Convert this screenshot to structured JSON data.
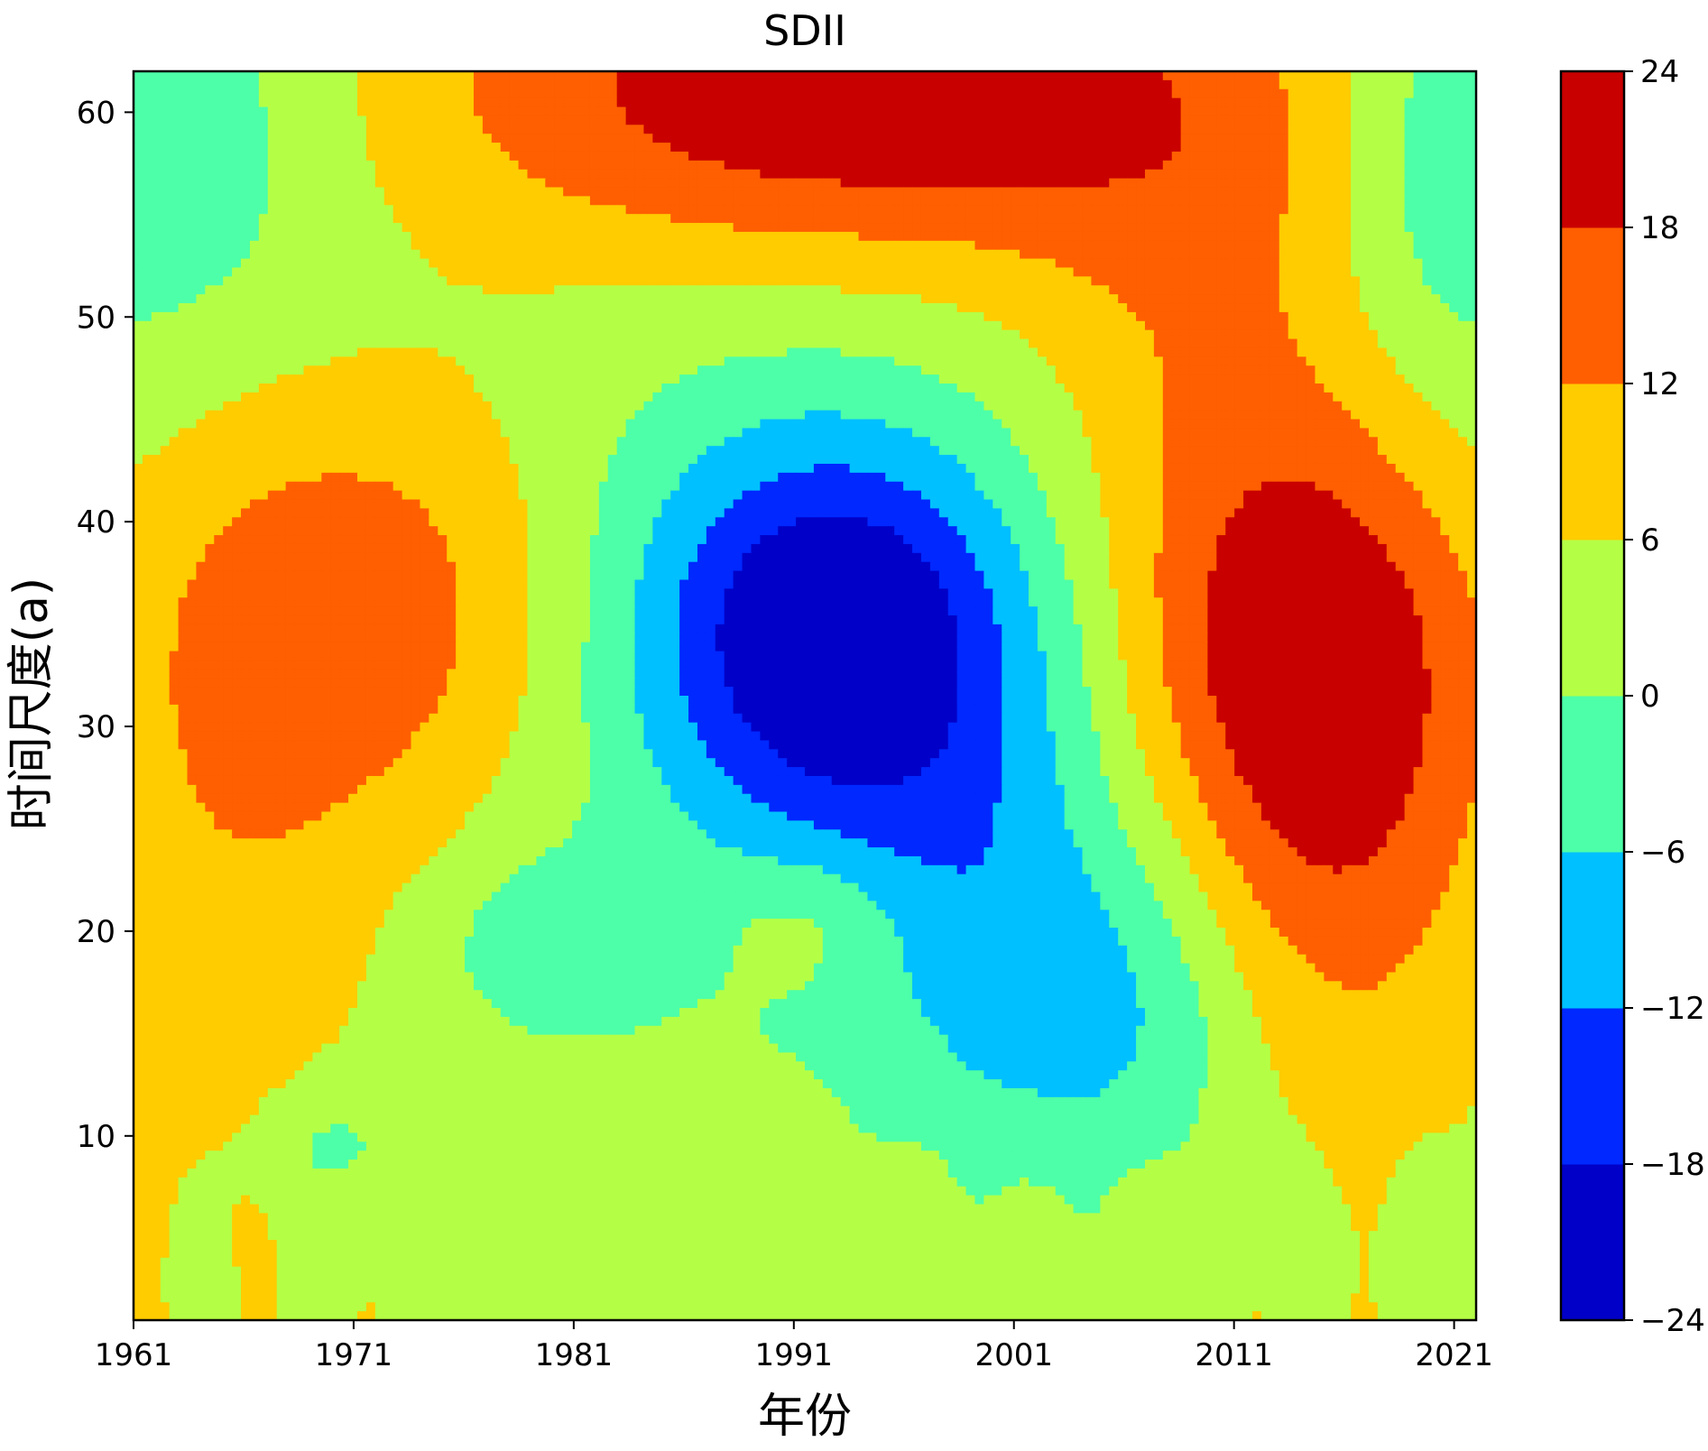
{
  "chart_data": {
    "type": "heatmap",
    "subtype": "filled-contour",
    "title": "SDII",
    "xlabel": "年份",
    "ylabel": "时间尺度(a)",
    "xlim": [
      1961,
      2022
    ],
    "ylim": [
      1,
      62
    ],
    "xticks": [
      1961,
      1971,
      1981,
      1991,
      2001,
      2011,
      2021
    ],
    "yticks": [
      10,
      20,
      30,
      40,
      50,
      60
    ],
    "colorbar": {
      "levels": [
        -24,
        -18,
        -12,
        -6,
        0,
        6,
        12,
        18,
        24
      ],
      "colors": [
        "#0000c8",
        "#0028ff",
        "#00c0ff",
        "#4dffa8",
        "#b4ff46",
        "#ffcc00",
        "#ff5f00",
        "#c80000"
      ]
    },
    "features": [
      {
        "x": 1993,
        "y": 34.5,
        "value": -22
      },
      {
        "x": 1992,
        "y": 35,
        "value": -16
      },
      {
        "x": 1980,
        "y": 19.5,
        "value": -8
      },
      {
        "x": 1970,
        "y": 9.5,
        "value": -8
      },
      {
        "x": 1963,
        "y": 59,
        "value": -8
      },
      {
        "x": 1965,
        "y": 34,
        "value": 9
      },
      {
        "x": 1972,
        "y": 35.5,
        "value": 15
      },
      {
        "x": 1992,
        "y": 20.5,
        "value": 8
      },
      {
        "x": 1994,
        "y": 60,
        "value": 21
      },
      {
        "x": 2014,
        "y": 34,
        "value": 20
      },
      {
        "x": 2014,
        "y": 28,
        "value": 14
      },
      {
        "x": 2017,
        "y": 52,
        "value": 8
      },
      {
        "x": 2020,
        "y": 58,
        "value": -3
      }
    ]
  }
}
